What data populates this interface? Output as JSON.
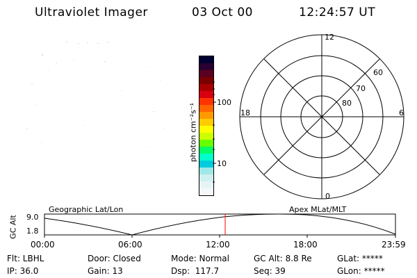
{
  "header": {
    "instrument": "Ultraviolet Imager",
    "date": "03 Oct 00",
    "time": "12:24:57 UT"
  },
  "colorbar": {
    "unit_label": "photon cm⁻²s⁻¹",
    "ticks": [
      "100",
      "10"
    ],
    "colors": [
      "#000033",
      "#2a0033",
      "#5a0020",
      "#7a0000",
      "#a80000",
      "#d80010",
      "#ff3300",
      "#ff6600",
      "#ff9900",
      "#ffcc00",
      "#ffff00",
      "#ccff00",
      "#66ff00",
      "#00ff66",
      "#00ffcc",
      "#00ccdd",
      "#9fe8e8",
      "#d0f0f0",
      "#e8f4f4",
      "#f4f8f8"
    ]
  },
  "polar_plot": {
    "mlt_labels": {
      "top": "12",
      "left": "18",
      "right": "6",
      "bottom": "0"
    },
    "lat_labels": [
      "60",
      "70",
      "80"
    ]
  },
  "timeline": {
    "left_title": "Geographic Lat/Lon",
    "right_title": "Apex MLat/MLT",
    "y_label": "GC Alt",
    "y_ticks": [
      "9.0",
      "1.8"
    ],
    "x_ticks": [
      "00:00",
      "06:00",
      "12:00",
      "18:00",
      "23:59"
    ],
    "marker_color": "#ff0000"
  },
  "status": {
    "flt": "Flt: LBHL",
    "door": "Door: Closed",
    "mode": "Mode: Normal",
    "gc_alt": "GC Alt: 8.8 Re",
    "glat": "GLat: *****",
    "ip": "IP: 36.0",
    "gain": "Gain: 13",
    "dsp": "Dsp:  117.7",
    "seq": "Seq: 39",
    "glon": "GLon: *****"
  }
}
